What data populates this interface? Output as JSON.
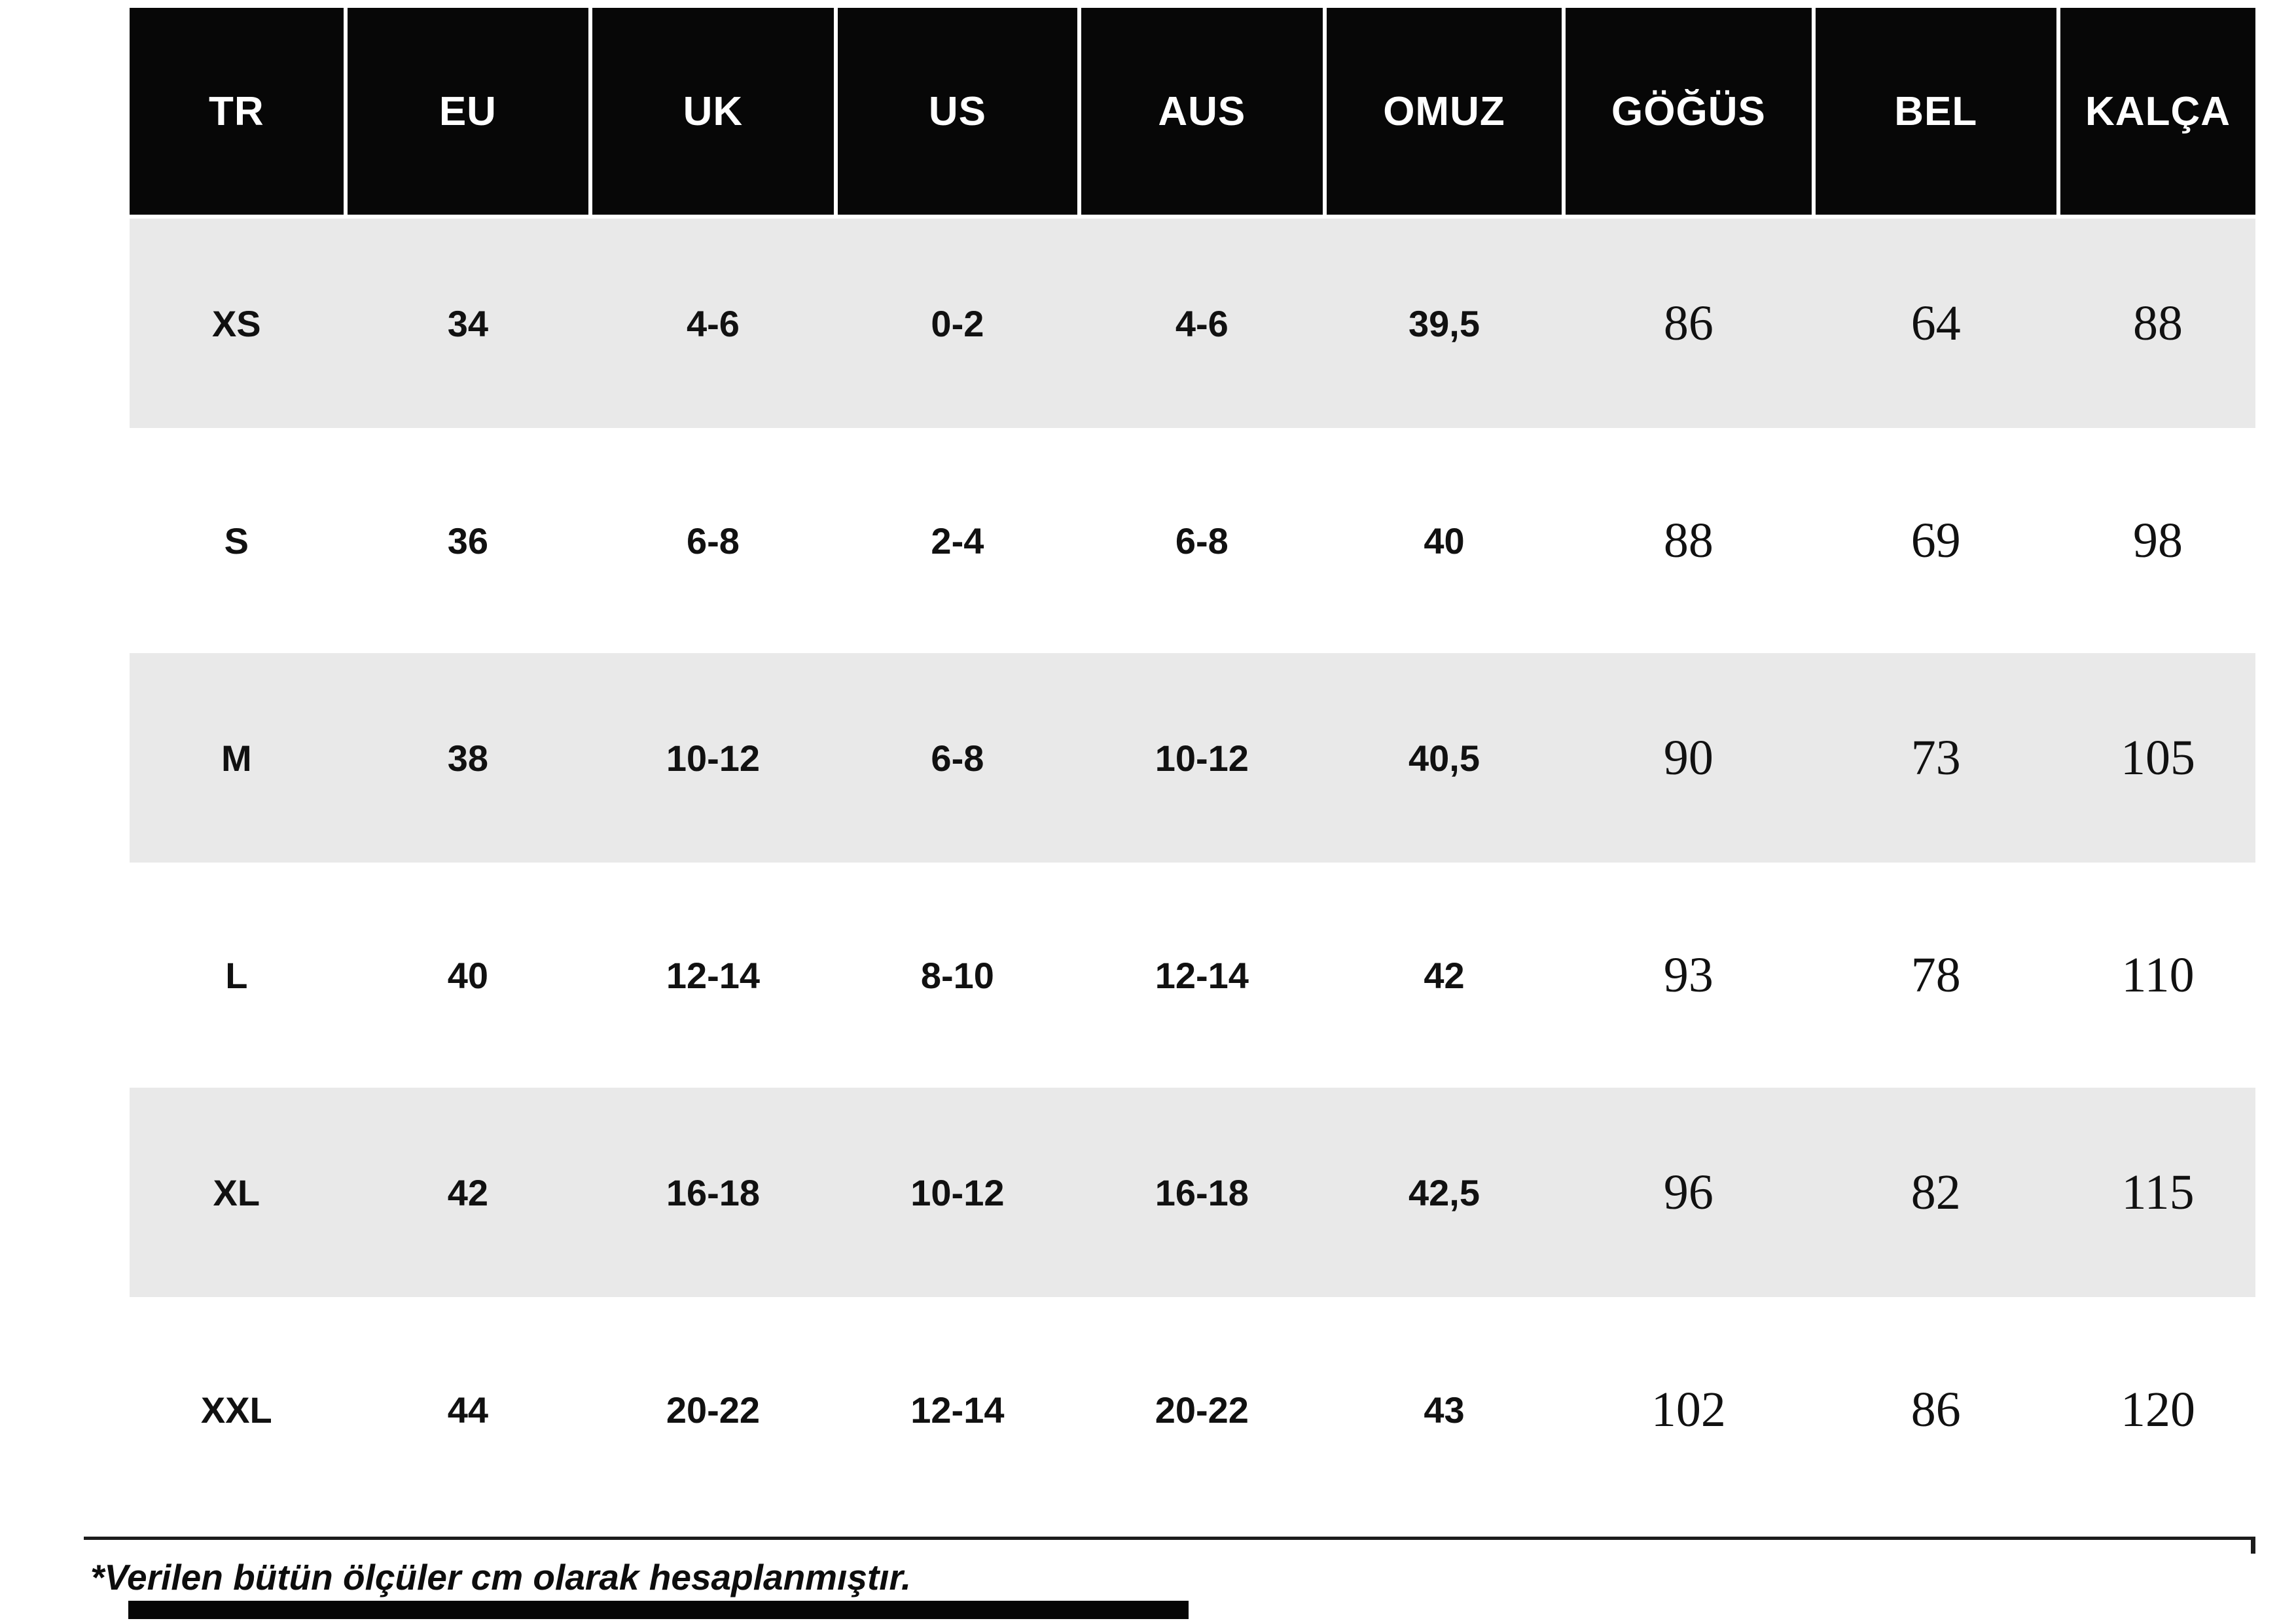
{
  "table": {
    "columns": [
      "TR",
      "EU",
      "UK",
      "US",
      "AUS",
      "OMUZ",
      "GÖĞÜS",
      "BEL",
      "KALÇA"
    ],
    "rows": [
      [
        "XS",
        "34",
        "4-6",
        "0-2",
        "4-6",
        "39,5",
        "86",
        "64",
        "88"
      ],
      [
        "S",
        "36",
        "6-8",
        "2-4",
        "6-8",
        "40",
        "88",
        "69",
        "98"
      ],
      [
        "M",
        "38",
        "10-12",
        "6-8",
        "10-12",
        "40,5",
        "90",
        "73",
        "105"
      ],
      [
        "L",
        "40",
        "12-14",
        "8-10",
        "12-14",
        "42",
        "93",
        "78",
        "110"
      ],
      [
        "XL",
        "42",
        "16-18",
        "10-12",
        "16-18",
        "42,5",
        "96",
        "82",
        "115"
      ],
      [
        "XXL",
        "44",
        "20-22",
        "12-14",
        "20-22",
        "43",
        "102",
        "86",
        "120"
      ]
    ]
  },
  "footnote": "*Verilen bütün ölçüler cm olarak hesaplanmıştır.",
  "colors": {
    "header_bg": "#070707",
    "header_text": "#ffffff",
    "stripe_bg": "#e9e9e9",
    "text": "#111111"
  },
  "chart_data": {
    "type": "table",
    "columns": [
      "TR",
      "EU",
      "UK",
      "US",
      "AUS",
      "OMUZ",
      "GÖĞÜS",
      "BEL",
      "KALÇA"
    ],
    "rows": [
      [
        "XS",
        "34",
        "4-6",
        "0-2",
        "4-6",
        "39,5",
        "86",
        "64",
        "88"
      ],
      [
        "S",
        "36",
        "6-8",
        "2-4",
        "6-8",
        "40",
        "88",
        "69",
        "98"
      ],
      [
        "M",
        "38",
        "10-12",
        "6-8",
        "10-12",
        "40,5",
        "90",
        "73",
        "105"
      ],
      [
        "L",
        "40",
        "12-14",
        "8-10",
        "12-14",
        "42",
        "93",
        "78",
        "110"
      ],
      [
        "XL",
        "42",
        "16-18",
        "10-12",
        "16-18",
        "42,5",
        "96",
        "82",
        "115"
      ],
      [
        "XXL",
        "44",
        "20-22",
        "12-14",
        "20-22",
        "43",
        "102",
        "86",
        "120"
      ]
    ],
    "notes": "*Verilen bütün ölçüler cm olarak hesaplanmıştır.",
    "units": "cm",
    "layout": "black header row, alternating light-gray striped body rows"
  }
}
